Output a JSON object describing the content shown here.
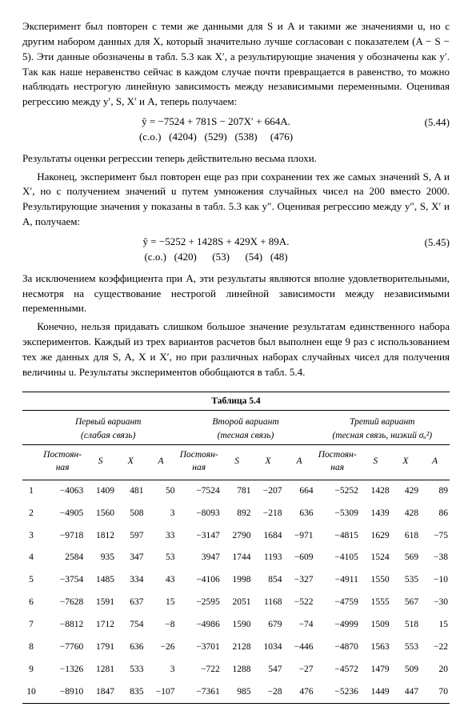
{
  "paragraphs": {
    "p1": "Эксперимент был повторен с теми же данными для S и A и такими же значениями u, но с другим набором данных для X, который значительно лучше согласован с показателем (A − S − 5). Эти данные обозначены в табл. 5.3 как X′, а результирующие значения y обозначены как y′. Так как наше неравенство сейчас в каждом случае почти превращается в равенство, то можно наблюдать нестрогую линейную зависимость между независимыми переменными. Оценивая регрессию между y′, S, X′ и A, теперь получаем:",
    "eq1_line1": "ŷ = −7524 + 781S − 207X′ + 664A.",
    "eq1_line2": "(с.о.)   (4204)   (529)   (538)     (476)",
    "eq1_num": "(5.44)",
    "p2": "Результаты оценки регрессии теперь действительно весьма плохи.",
    "p3": "Наконец, эксперимент был повторен еще раз при сохранении тех же самых значений S, A и X′, но с получением значений u путем умножения случайных чисел на 200 вместо 2000. Результирующие значения y показаны в табл. 5.3 как y″. Оценивая регрессию между y″, S, X′ и A, получаем:",
    "eq2_line1": "ŷ = −5252 + 1428S + 429X + 89A.",
    "eq2_line2": "(с.о.)   (420)      (53)      (54)   (48)",
    "eq2_num": "(5.45)",
    "p4": "За исключением коэффициента при A, эти результаты являются вполне удовлетворительными, несмотря на существование нестрогой линейной зависимости между независимыми переменными.",
    "p5": "Конечно, нельзя придавать слишком большое значение результатам единственного набора экспериментов. Каждый из трех вариантов расчетов был выполнен еще 9 раз с использованием тех же данных для S, A, X и X′, но при различных наборах случайных чисел для получения величины u. Результаты экспериментов обобщаются в табл. 5.4."
  },
  "table": {
    "title": "Таблица 5.4",
    "super_headers": [
      {
        "label": "Первый вариант",
        "sub": "(слабая связь)"
      },
      {
        "label": "Второй вариант",
        "sub": "(тесная связь)"
      },
      {
        "label": "Третий вариант",
        "sub": "(тесная связь, низкий σᵤ²)"
      }
    ],
    "col_headers": [
      "Постоян-\nная",
      "S",
      "X",
      "A"
    ],
    "rows": [
      [
        "1",
        "−4063",
        "1409",
        "481",
        "50",
        "−7524",
        "781",
        "−207",
        "664",
        "−5252",
        "1428",
        "429",
        "89"
      ],
      [
        "2",
        "−4905",
        "1560",
        "508",
        "3",
        "−8093",
        "892",
        "−218",
        "636",
        "−5309",
        "1439",
        "428",
        "86"
      ],
      [
        "3",
        "−9718",
        "1812",
        "597",
        "33",
        "−3147",
        "2790",
        "1684",
        "−971",
        "−4815",
        "1629",
        "618",
        "−75"
      ],
      [
        "4",
        "2584",
        "935",
        "347",
        "53",
        "3947",
        "1744",
        "1193",
        "−609",
        "−4105",
        "1524",
        "569",
        "−38"
      ],
      [
        "5",
        "−3754",
        "1485",
        "334",
        "43",
        "−4106",
        "1998",
        "854",
        "−327",
        "−4911",
        "1550",
        "535",
        "−10"
      ],
      [
        "6",
        "−7628",
        "1591",
        "637",
        "15",
        "−2595",
        "2051",
        "1168",
        "−522",
        "−4759",
        "1555",
        "567",
        "−30"
      ],
      [
        "7",
        "−8812",
        "1712",
        "754",
        "−8",
        "−4986",
        "1590",
        "679",
        "−74",
        "−4999",
        "1509",
        "518",
        "15"
      ],
      [
        "8",
        "−7760",
        "1791",
        "636",
        "−26",
        "−3701",
        "2128",
        "1034",
        "−446",
        "−4870",
        "1563",
        "553",
        "−22"
      ],
      [
        "9",
        "−1326",
        "1281",
        "533",
        "3",
        "−722",
        "1288",
        "547",
        "−27",
        "−4572",
        "1479",
        "509",
        "20"
      ],
      [
        "10",
        "−8910",
        "1847",
        "835",
        "−107",
        "−7361",
        "985",
        "−28",
        "476",
        "−5236",
        "1449",
        "447",
        "70"
      ]
    ]
  }
}
